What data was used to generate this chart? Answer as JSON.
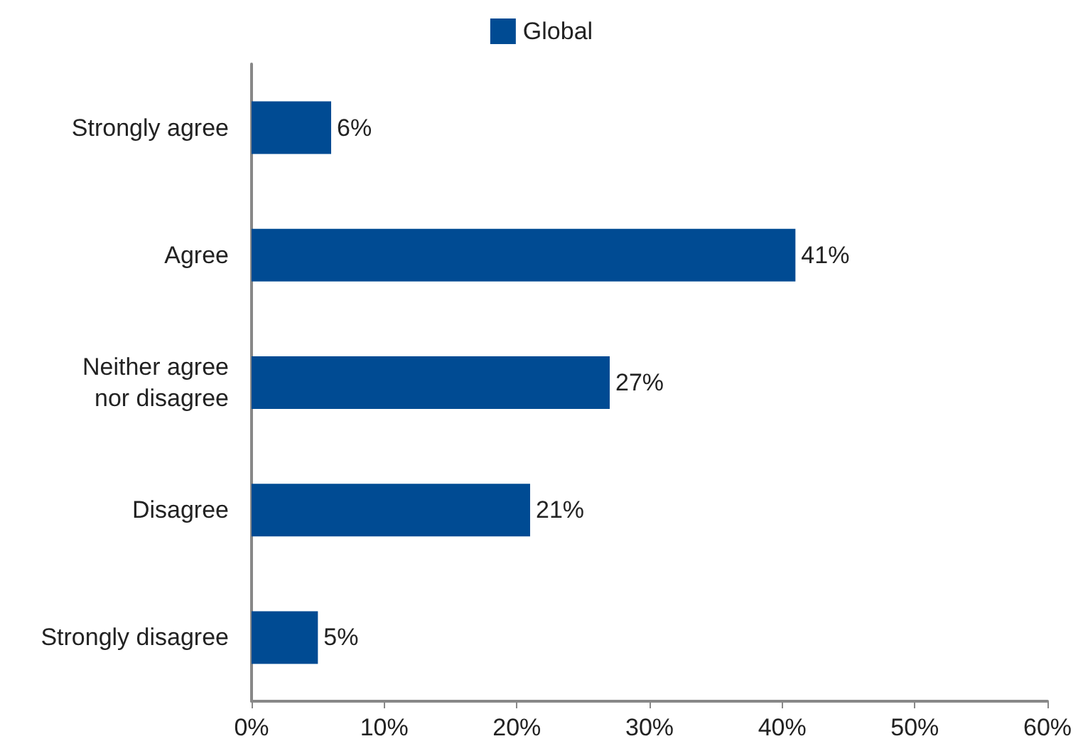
{
  "chart_data": {
    "type": "bar",
    "orientation": "horizontal",
    "categories": [
      "Strongly agree",
      "Agree",
      "Neither agree\nnor disagree",
      "Disagree",
      "Strongly disagree"
    ],
    "series": [
      {
        "name": "Global",
        "color": "#004b93",
        "values": [
          6,
          41,
          27,
          21,
          5
        ],
        "value_labels": [
          "6%",
          "41%",
          "27%",
          "21%",
          "5%"
        ]
      }
    ],
    "xlim": [
      0,
      60
    ],
    "xticks": [
      {
        "value": 0,
        "label": "0%"
      },
      {
        "value": 10,
        "label": "10%"
      },
      {
        "value": 20,
        "label": "20%"
      },
      {
        "value": 30,
        "label": "30%"
      },
      {
        "value": 40,
        "label": "40%"
      },
      {
        "value": 50,
        "label": "50%"
      },
      {
        "value": 60,
        "label": "60%"
      }
    ],
    "grid": false,
    "legend": "top"
  }
}
